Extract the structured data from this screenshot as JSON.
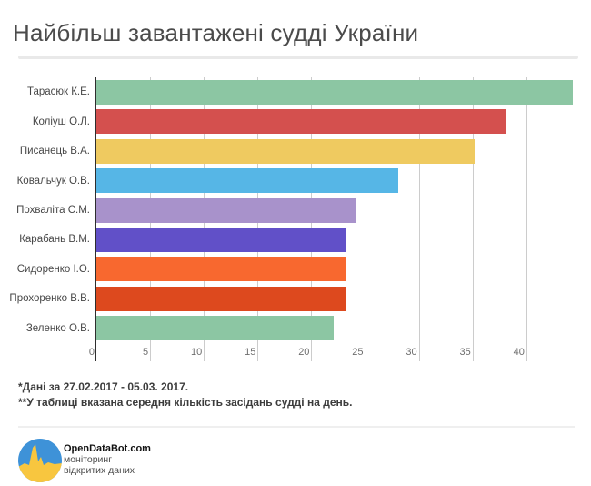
{
  "title": "Найбільш завантажені судді України",
  "footnotes": {
    "line1": "*Дані за 27.02.2017 - 05.03. 2017.",
    "line2": "**У таблиці вказана середня кількість засідань судді на день."
  },
  "logo": {
    "name": "OpenDataBot.com",
    "sub1": "моніторинг",
    "sub2": "відкритих даних",
    "circle_blue": "#3e92d8",
    "circle_yellow": "#f8c63f"
  },
  "chart_data": {
    "type": "bar",
    "orientation": "horizontal",
    "title": "Найбільш завантажені судді України",
    "xlabel": "",
    "ylabel": "",
    "categories": [
      "Тарасюк К.Е.",
      "Коліуш О.Л.",
      "Писанець В.А.",
      "Ковальчук О.В.",
      "Похваліта С.М.",
      "Карабань В.М.",
      "Сидоренко І.О.",
      "Прохоренко В.В.",
      "Зеленко О.В."
    ],
    "values": [
      44.3,
      38.1,
      35.2,
      28.1,
      24.2,
      23.2,
      23.2,
      23.2,
      22.1
    ],
    "bar_colors": [
      "#8cc6a3",
      "#d4504e",
      "#efca60",
      "#56b6e6",
      "#a892cb",
      "#6150c8",
      "#f8682f",
      "#dd491e",
      "#8cc6a3"
    ],
    "x_ticks": [
      0,
      5,
      10,
      15,
      20,
      25,
      30,
      35,
      40
    ],
    "xlim": [
      0,
      45
    ],
    "grid": true,
    "legend": "none",
    "grid_color": "#cccccc",
    "axis_color": "#2e2e2e",
    "units_note": "середня кількість засідань судді на день"
  }
}
